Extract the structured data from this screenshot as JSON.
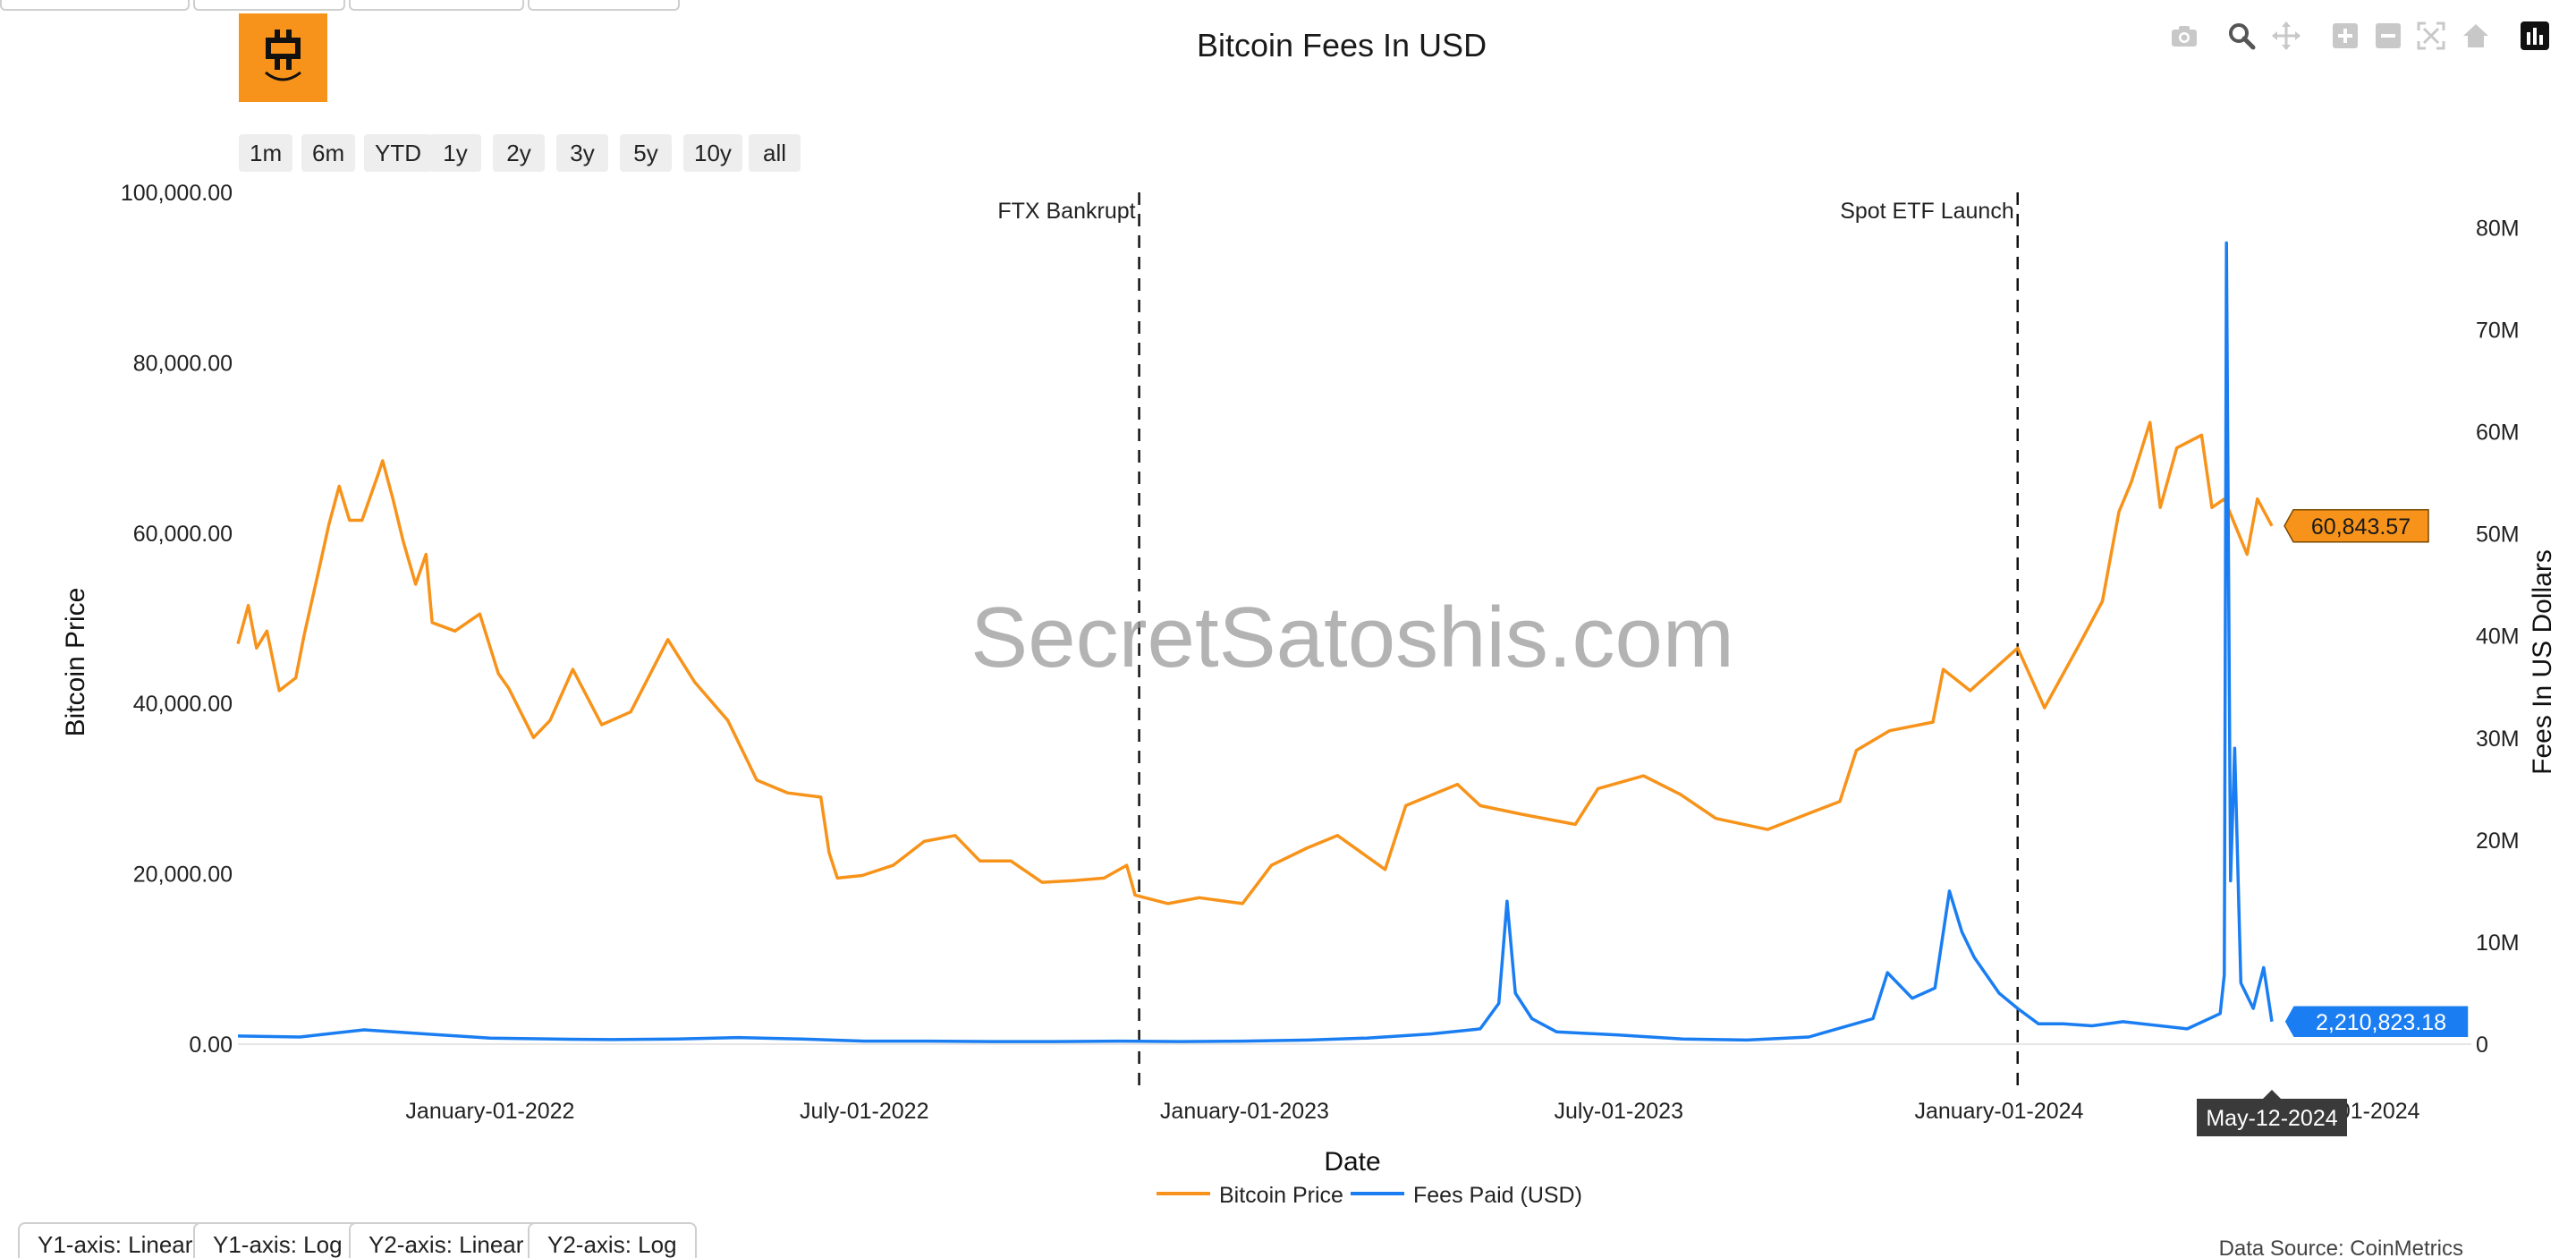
{
  "chart_title": "Bitcoin Fees In USD",
  "range_buttons": [
    "1m",
    "6m",
    "YTD",
    "1y",
    "2y",
    "3y",
    "5y",
    "10y",
    "all"
  ],
  "axis_buttons": [
    "Y1-axis: Linear",
    "Y1-axis: Log",
    "Y2-axis: Linear",
    "Y2-axis: Log"
  ],
  "data_source": "Data Source: CoinMetrics",
  "watermark": "SecretSatoshis.com",
  "hover_date": "May-12-2024",
  "colors": {
    "price": "#F7931A",
    "fees": "#1A7EF2",
    "logo": "#F7931A",
    "hover": "#3a3a3a"
  },
  "modebar_icons": [
    "camera-icon",
    "zoom-icon",
    "pan-icon",
    "zoom-in-icon",
    "zoom-out-icon",
    "autoscale-icon",
    "reset-axes-icon",
    "plotly-logo-icon"
  ],
  "chart_data": {
    "type": "line",
    "title": "Bitcoin Fees In USD",
    "xlabel": "Date",
    "ylabel": "Bitcoin Price",
    "y2label": "Fees In US Dollars",
    "x_range": [
      "2021-09-01",
      "2024-05-12"
    ],
    "x_ticks": [
      {
        "date": "2022-01-01",
        "label": "January-01-2022"
      },
      {
        "date": "2022-07-01",
        "label": "July-01-2022"
      },
      {
        "date": "2023-01-01",
        "label": "January-01-2023"
      },
      {
        "date": "2023-07-01",
        "label": "July-01-2023"
      },
      {
        "date": "2024-01-01",
        "label": "January-01-2024"
      },
      {
        "date": "2024-07-01",
        "label": "-01-2024"
      }
    ],
    "ylim": [
      0,
      100000
    ],
    "y_ticks": [
      "0.00",
      "20,000.00",
      "40,000.00",
      "60,000.00",
      "80,000.00",
      "100,000.00"
    ],
    "y_tick_values": [
      0,
      20000,
      40000,
      60000,
      80000,
      100000
    ],
    "y2lim": [
      0,
      81000000
    ],
    "y2_ticks": [
      "0",
      "10M",
      "20M",
      "30M",
      "40M",
      "50M",
      "60M",
      "70M",
      "80M"
    ],
    "y2_tick_values": [
      0,
      10000000,
      20000000,
      30000000,
      40000000,
      50000000,
      60000000,
      70000000,
      80000000
    ],
    "grid": false,
    "legend_position": "bottom-center",
    "annotations": [
      {
        "date": "2022-11-11",
        "label": "FTX Bankrupt"
      },
      {
        "date": "2024-01-10",
        "label": "Spot ETF Launch"
      }
    ],
    "last_labels": {
      "price": "60,843.57",
      "fees": "2,210,823.18"
    },
    "series": [
      {
        "name": "Bitcoin Price",
        "axis": "y",
        "color": "#F7931A",
        "points": [
          [
            "2021-09-01",
            47000
          ],
          [
            "2021-09-06",
            51500
          ],
          [
            "2021-09-10",
            46500
          ],
          [
            "2021-09-15",
            48500
          ],
          [
            "2021-09-21",
            41500
          ],
          [
            "2021-09-29",
            43000
          ],
          [
            "2021-10-03",
            48000
          ],
          [
            "2021-10-10",
            55500
          ],
          [
            "2021-10-15",
            61000
          ],
          [
            "2021-10-20",
            65500
          ],
          [
            "2021-10-25",
            61500
          ],
          [
            "2021-10-31",
            61500
          ],
          [
            "2021-11-08",
            67000
          ],
          [
            "2021-11-10",
            68500
          ],
          [
            "2021-11-15",
            64000
          ],
          [
            "2021-11-20",
            59000
          ],
          [
            "2021-11-26",
            54000
          ],
          [
            "2021-12-01",
            57500
          ],
          [
            "2021-12-04",
            49500
          ],
          [
            "2021-12-15",
            48500
          ],
          [
            "2021-12-27",
            50500
          ],
          [
            "2022-01-05",
            43500
          ],
          [
            "2022-01-10",
            41800
          ],
          [
            "2022-01-22",
            36000
          ],
          [
            "2022-01-30",
            38000
          ],
          [
            "2022-02-10",
            44000
          ],
          [
            "2022-02-24",
            37500
          ],
          [
            "2022-03-10",
            39000
          ],
          [
            "2022-03-28",
            47500
          ],
          [
            "2022-04-10",
            42500
          ],
          [
            "2022-04-26",
            38000
          ],
          [
            "2022-05-10",
            31000
          ],
          [
            "2022-05-25",
            29500
          ],
          [
            "2022-06-10",
            29000
          ],
          [
            "2022-06-14",
            22500
          ],
          [
            "2022-06-18",
            19500
          ],
          [
            "2022-06-30",
            19800
          ],
          [
            "2022-07-15",
            21000
          ],
          [
            "2022-07-30",
            23800
          ],
          [
            "2022-08-14",
            24500
          ],
          [
            "2022-08-26",
            21500
          ],
          [
            "2022-09-10",
            21500
          ],
          [
            "2022-09-25",
            19000
          ],
          [
            "2022-10-10",
            19200
          ],
          [
            "2022-10-25",
            19500
          ],
          [
            "2022-11-05",
            21000
          ],
          [
            "2022-11-09",
            17500
          ],
          [
            "2022-11-25",
            16500
          ],
          [
            "2022-12-10",
            17200
          ],
          [
            "2022-12-31",
            16500
          ],
          [
            "2023-01-14",
            21000
          ],
          [
            "2023-01-31",
            23000
          ],
          [
            "2023-02-15",
            24500
          ],
          [
            "2023-03-10",
            20500
          ],
          [
            "2023-03-20",
            28000
          ],
          [
            "2023-04-14",
            30500
          ],
          [
            "2023-04-25",
            28000
          ],
          [
            "2023-05-15",
            27000
          ],
          [
            "2023-06-10",
            25800
          ],
          [
            "2023-06-21",
            30000
          ],
          [
            "2023-07-13",
            31500
          ],
          [
            "2023-07-31",
            29300
          ],
          [
            "2023-08-17",
            26500
          ],
          [
            "2023-09-11",
            25200
          ],
          [
            "2023-09-30",
            27000
          ],
          [
            "2023-10-16",
            28500
          ],
          [
            "2023-10-24",
            34500
          ],
          [
            "2023-11-09",
            36800
          ],
          [
            "2023-11-30",
            37800
          ],
          [
            "2023-12-05",
            44000
          ],
          [
            "2023-12-18",
            41500
          ],
          [
            "2024-01-10",
            46500
          ],
          [
            "2024-01-23",
            39500
          ],
          [
            "2024-02-09",
            47000
          ],
          [
            "2024-02-20",
            52000
          ],
          [
            "2024-02-28",
            62500
          ],
          [
            "2024-03-05",
            66000
          ],
          [
            "2024-03-14",
            73000
          ],
          [
            "2024-03-19",
            63000
          ],
          [
            "2024-03-27",
            70000
          ],
          [
            "2024-04-08",
            71500
          ],
          [
            "2024-04-13",
            63000
          ],
          [
            "2024-04-19",
            64000
          ],
          [
            "2024-04-30",
            57500
          ],
          [
            "2024-05-05",
            64000
          ],
          [
            "2024-05-12",
            60843.57
          ]
        ]
      },
      {
        "name": "Fees Paid (USD)",
        "axis": "y2",
        "color": "#1A7EF2",
        "points": [
          [
            "2021-09-01",
            800000
          ],
          [
            "2021-10-01",
            700000
          ],
          [
            "2021-11-01",
            1400000
          ],
          [
            "2021-12-01",
            1000000
          ],
          [
            "2022-01-01",
            600000
          ],
          [
            "2022-02-01",
            500000
          ],
          [
            "2022-03-01",
            450000
          ],
          [
            "2022-04-01",
            500000
          ],
          [
            "2022-05-01",
            650000
          ],
          [
            "2022-06-01",
            500000
          ],
          [
            "2022-07-01",
            300000
          ],
          [
            "2022-08-01",
            300000
          ],
          [
            "2022-09-01",
            250000
          ],
          [
            "2022-10-01",
            250000
          ],
          [
            "2022-11-01",
            300000
          ],
          [
            "2022-12-01",
            250000
          ],
          [
            "2023-01-01",
            300000
          ],
          [
            "2023-02-01",
            400000
          ],
          [
            "2023-03-01",
            600000
          ],
          [
            "2023-04-01",
            1000000
          ],
          [
            "2023-04-25",
            1500000
          ],
          [
            "2023-05-04",
            4000000
          ],
          [
            "2023-05-08",
            14000000
          ],
          [
            "2023-05-12",
            5000000
          ],
          [
            "2023-05-20",
            2500000
          ],
          [
            "2023-06-01",
            1200000
          ],
          [
            "2023-07-01",
            900000
          ],
          [
            "2023-08-01",
            500000
          ],
          [
            "2023-09-01",
            400000
          ],
          [
            "2023-10-01",
            700000
          ],
          [
            "2023-11-01",
            2500000
          ],
          [
            "2023-11-08",
            7000000
          ],
          [
            "2023-11-20",
            4500000
          ],
          [
            "2023-12-01",
            5500000
          ],
          [
            "2023-12-08",
            15000000
          ],
          [
            "2023-12-14",
            11000000
          ],
          [
            "2023-12-20",
            8500000
          ],
          [
            "2024-01-01",
            5000000
          ],
          [
            "2024-01-10",
            3500000
          ],
          [
            "2024-01-20",
            2000000
          ],
          [
            "2024-02-01",
            2000000
          ],
          [
            "2024-02-15",
            1800000
          ],
          [
            "2024-03-01",
            2200000
          ],
          [
            "2024-04-01",
            1500000
          ],
          [
            "2024-04-17",
            3000000
          ],
          [
            "2024-04-19",
            6800000
          ],
          [
            "2024-04-20",
            78500000
          ],
          [
            "2024-04-22",
            16000000
          ],
          [
            "2024-04-24",
            29000000
          ],
          [
            "2024-04-27",
            6000000
          ],
          [
            "2024-05-03",
            3500000
          ],
          [
            "2024-05-08",
            7500000
          ],
          [
            "2024-05-12",
            2210823.18
          ]
        ]
      }
    ]
  }
}
